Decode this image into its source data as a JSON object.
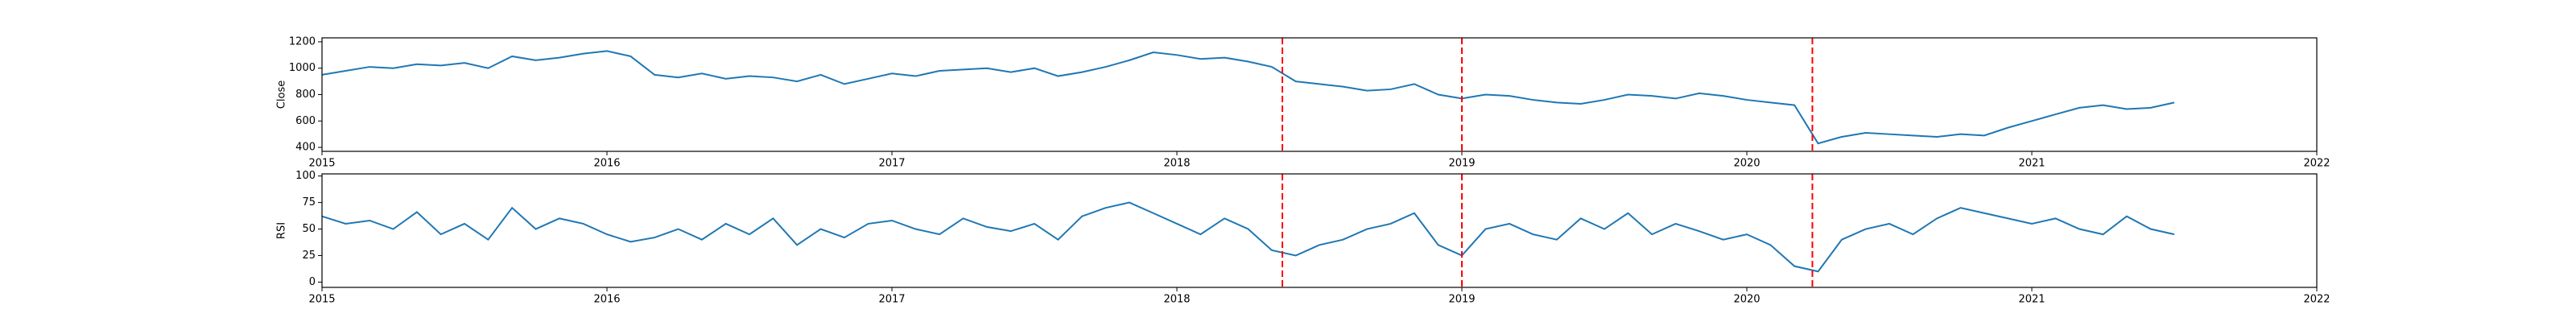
{
  "chart_data": [
    {
      "type": "line",
      "ylabel": "Close",
      "x": [
        2015,
        2015.083,
        2015.167,
        2015.25,
        2015.333,
        2015.417,
        2015.5,
        2015.583,
        2015.667,
        2015.75,
        2015.833,
        2015.917,
        2016,
        2016.083,
        2016.167,
        2016.25,
        2016.333,
        2016.417,
        2016.5,
        2016.583,
        2016.667,
        2016.75,
        2016.833,
        2016.917,
        2017,
        2017.083,
        2017.167,
        2017.25,
        2017.333,
        2017.417,
        2017.5,
        2017.583,
        2017.667,
        2017.75,
        2017.833,
        2017.917,
        2018,
        2018.083,
        2018.167,
        2018.25,
        2018.333,
        2018.417,
        2018.5,
        2018.583,
        2018.667,
        2018.75,
        2018.833,
        2018.917,
        2019,
        2019.083,
        2019.167,
        2019.25,
        2019.333,
        2019.417,
        2019.5,
        2019.583,
        2019.667,
        2019.75,
        2019.833,
        2019.917,
        2020,
        2020.083,
        2020.167,
        2020.25,
        2020.333,
        2020.417,
        2020.5,
        2020.583,
        2020.667,
        2020.75,
        2020.833,
        2020.917,
        2021,
        2021.083,
        2021.167,
        2021.25,
        2021.333,
        2021.417,
        2021.5
      ],
      "series": [
        {
          "color": "#1f77b4",
          "values": [
            950,
            980,
            1010,
            1000,
            1030,
            1020,
            1040,
            1000,
            1090,
            1060,
            1080,
            1110,
            1130,
            1090,
            950,
            930,
            960,
            920,
            940,
            930,
            900,
            950,
            880,
            920,
            960,
            940,
            980,
            990,
            1000,
            970,
            1000,
            940,
            970,
            1010,
            1060,
            1120,
            1100,
            1070,
            1080,
            1050,
            1010,
            900,
            880,
            860,
            830,
            840,
            880,
            800,
            770,
            800,
            790,
            760,
            740,
            730,
            760,
            800,
            790,
            770,
            810,
            790,
            760,
            740,
            720,
            430,
            480,
            510,
            500,
            490,
            480,
            500,
            490,
            550,
            600,
            650,
            700,
            720,
            690,
            700,
            740
          ]
        }
      ],
      "xlim": [
        2015,
        2022
      ],
      "xticks": [
        2015,
        2016,
        2017,
        2018,
        2019,
        2020,
        2021,
        2022
      ],
      "ylim": [
        370,
        1230
      ],
      "yticks": [
        400,
        600,
        800,
        1000,
        1200
      ],
      "vlines": [
        2018.37,
        2019.0,
        2020.23
      ],
      "vline_color": "#ff0000"
    },
    {
      "type": "line",
      "ylabel": "RSI",
      "x": [
        2015,
        2015.083,
        2015.167,
        2015.25,
        2015.333,
        2015.417,
        2015.5,
        2015.583,
        2015.667,
        2015.75,
        2015.833,
        2015.917,
        2016,
        2016.083,
        2016.167,
        2016.25,
        2016.333,
        2016.417,
        2016.5,
        2016.583,
        2016.667,
        2016.75,
        2016.833,
        2016.917,
        2017,
        2017.083,
        2017.167,
        2017.25,
        2017.333,
        2017.417,
        2017.5,
        2017.583,
        2017.667,
        2017.75,
        2017.833,
        2017.917,
        2018,
        2018.083,
        2018.167,
        2018.25,
        2018.333,
        2018.417,
        2018.5,
        2018.583,
        2018.667,
        2018.75,
        2018.833,
        2018.917,
        2019,
        2019.083,
        2019.167,
        2019.25,
        2019.333,
        2019.417,
        2019.5,
        2019.583,
        2019.667,
        2019.75,
        2019.833,
        2019.917,
        2020,
        2020.083,
        2020.167,
        2020.25,
        2020.333,
        2020.417,
        2020.5,
        2020.583,
        2020.667,
        2020.75,
        2020.833,
        2020.917,
        2021,
        2021.083,
        2021.167,
        2021.25,
        2021.333,
        2021.417,
        2021.5
      ],
      "series": [
        {
          "color": "#1f77b4",
          "values": [
            62,
            55,
            58,
            50,
            66,
            45,
            55,
            40,
            70,
            50,
            60,
            55,
            45,
            38,
            42,
            50,
            40,
            55,
            45,
            60,
            35,
            50,
            42,
            55,
            58,
            50,
            45,
            60,
            52,
            48,
            55,
            40,
            62,
            70,
            75,
            65,
            55,
            45,
            60,
            50,
            30,
            25,
            35,
            40,
            50,
            55,
            65,
            35,
            25,
            50,
            55,
            45,
            40,
            60,
            50,
            65,
            45,
            55,
            48,
            40,
            45,
            35,
            15,
            10,
            40,
            50,
            55,
            45,
            60,
            70,
            65,
            60,
            55,
            60,
            50,
            45,
            62,
            50,
            45
          ]
        }
      ],
      "xlim": [
        2015,
        2022
      ],
      "xticks": [
        2015,
        2016,
        2017,
        2018,
        2019,
        2020,
        2021,
        2022
      ],
      "ylim": [
        -5,
        102
      ],
      "yticks": [
        0,
        25,
        50,
        75,
        100
      ],
      "vlines": [
        2018.37,
        2019.0,
        2020.23
      ],
      "vline_color": "#ff0000"
    }
  ]
}
